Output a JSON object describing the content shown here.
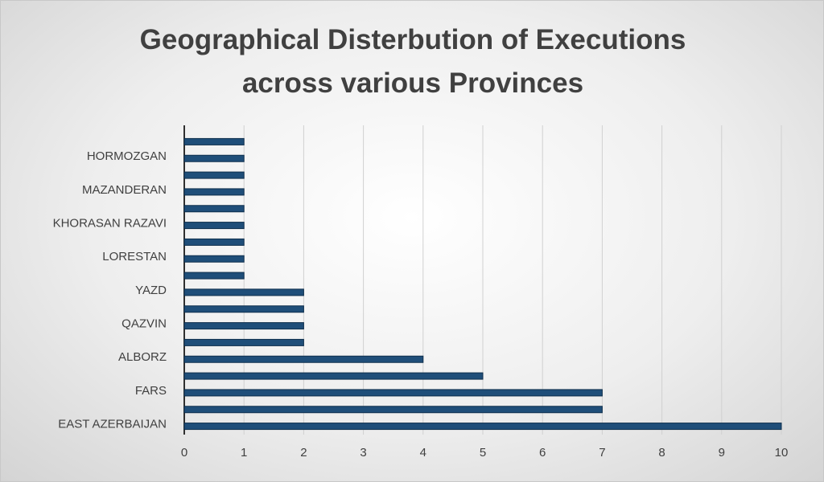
{
  "chart_data": {
    "type": "bar",
    "orientation": "horizontal",
    "title": "Geographical Disterbution of Executions across various Provinces",
    "categories": [
      "EAST AZERBAIJAN",
      null,
      "FARS",
      null,
      "ALBORZ",
      null,
      "QAZVIN",
      null,
      "YAZD",
      null,
      "LORESTAN",
      null,
      "KHORASAN RAZAVI",
      null,
      "MAZANDERAN",
      null,
      "HORMOZGAN",
      null
    ],
    "values": [
      10,
      7,
      7,
      5,
      4,
      2,
      2,
      2,
      2,
      1,
      1,
      1,
      1,
      1,
      1,
      1,
      1,
      1
    ],
    "color": "#1f4e79",
    "xlim": [
      0,
      10
    ],
    "xticks": [
      0,
      1,
      2,
      3,
      4,
      5,
      6,
      7,
      8,
      9,
      10
    ],
    "grid": true
  }
}
